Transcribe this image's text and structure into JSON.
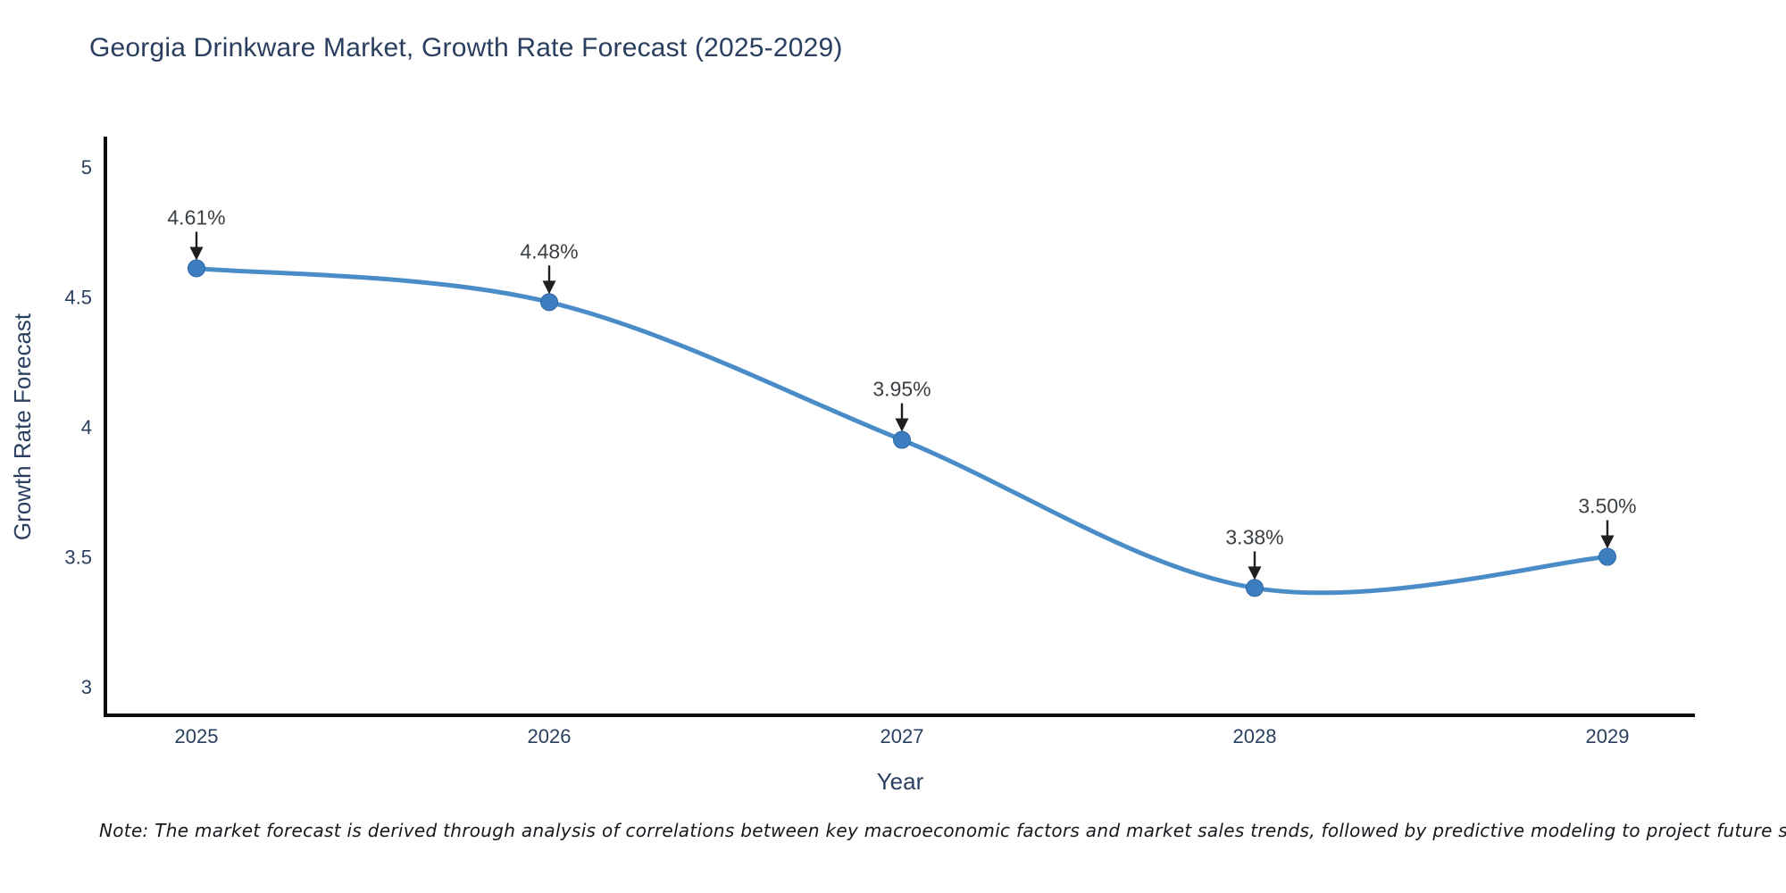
{
  "page": {
    "title": "Georgia Drinkware Market, Growth Rate Forecast (2025-2029)",
    "footnote": "Note: The market forecast is derived through analysis of correlations between key macroeconomic factors and market sales trends, followed by predictive modeling to project future sales"
  },
  "chart_data": {
    "type": "line",
    "title": "Georgia Drinkware Market, Growth Rate Forecast (2025-2029)",
    "xlabel": "Year",
    "ylabel": "Growth Rate Forecast",
    "x": [
      2025,
      2026,
      2027,
      2028,
      2029
    ],
    "xtick_labels": [
      "2025",
      "2026",
      "2027",
      "2028",
      "2029"
    ],
    "series": [
      {
        "name": "Growth Rate Forecast",
        "values": [
          4.61,
          4.48,
          3.95,
          3.38,
          3.5
        ]
      }
    ],
    "point_labels": [
      "4.61%",
      "4.48%",
      "3.95%",
      "3.38%",
      "3.50%"
    ],
    "yticks": [
      3,
      3.5,
      4,
      4.5,
      5
    ],
    "ytick_labels": [
      "3",
      "3.5",
      "4",
      "4.5",
      "5"
    ],
    "ylim": [
      2.95,
      5.12
    ],
    "grid": false,
    "legend_position": "none",
    "line_style": "spline",
    "marker": "circle",
    "annotation_style": "value label above each point with black down-arrow",
    "colors": {
      "line": "#4a8cc7",
      "marker_fill": "#3d7ec0",
      "marker_edge": "#2c67a5",
      "axis": "#0d0d0d",
      "text": "#2a3f5f",
      "annotation_text": "#3b4045",
      "arrow": "#1f1f1f",
      "background": "#ffffff"
    }
  }
}
